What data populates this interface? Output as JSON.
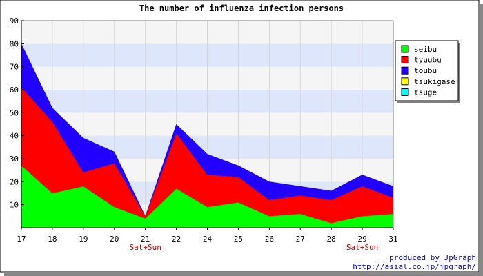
{
  "chart_data": {
    "type": "area",
    "stacked": true,
    "title": "The number of influenza infection persons",
    "categories": [
      "17",
      "18",
      "19",
      "20",
      "21",
      "22",
      "24",
      "25",
      "26",
      "27",
      "28",
      "29",
      "31"
    ],
    "x_annotations": [
      {
        "category": "21",
        "text": "Sat+Sun"
      },
      {
        "category": "29",
        "text": "Sat+Sun"
      }
    ],
    "ylim": [
      0,
      90
    ],
    "yticks": [
      "10",
      "20",
      "30",
      "40",
      "50",
      "60",
      "70",
      "80",
      "90"
    ],
    "grid": "horizontal bands and vertical lines",
    "legend_position": "top-right",
    "series": [
      {
        "name": "seibu",
        "color": "#00ff00",
        "values": [
          27,
          15,
          18,
          9,
          4,
          17,
          9,
          11,
          5,
          6,
          2,
          5,
          6
        ]
      },
      {
        "name": "tyuubu",
        "color": "#ff0000",
        "values": [
          34,
          31,
          6,
          19,
          1,
          24,
          14,
          11,
          7,
          8,
          10,
          13,
          7
        ]
      },
      {
        "name": "toubu",
        "color": "#2200ff",
        "values": [
          19,
          6,
          15,
          5,
          0,
          4,
          9,
          5,
          8,
          4,
          4,
          5,
          5
        ]
      },
      {
        "name": "tsukigase",
        "color": "#ffff00",
        "values": [
          0,
          0,
          0,
          0,
          0,
          0,
          0,
          0,
          0,
          0,
          0,
          0,
          0
        ]
      },
      {
        "name": "tsuge",
        "color": "#00ffff",
        "values": [
          0,
          0,
          0,
          0,
          0,
          0,
          0,
          0,
          0,
          0,
          0,
          0,
          0
        ]
      }
    ]
  },
  "footer": {
    "line1": "produced by JpGraph",
    "line2": "http://asial.co.jp/jpgraph/",
    "color": "#0000cc"
  }
}
